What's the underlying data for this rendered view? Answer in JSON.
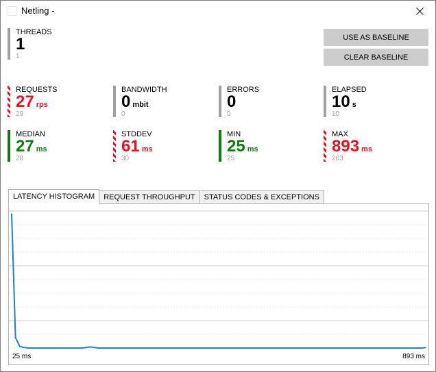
{
  "window": {
    "title": "Netling -"
  },
  "metrics": {
    "threads": {
      "label": "THREADS",
      "value": "1",
      "unit": "",
      "baseline": "1"
    },
    "requests": {
      "label": "REQUESTS",
      "value": "27",
      "unit": "rps",
      "baseline": "29"
    },
    "bandwidth": {
      "label": "BANDWIDTH",
      "value": "0",
      "unit": "mbit",
      "baseline": "0"
    },
    "errors": {
      "label": "ERRORS",
      "value": "0",
      "unit": "",
      "baseline": "0"
    },
    "elapsed": {
      "label": "ELAPSED",
      "value": "10",
      "unit": "s",
      "baseline": "10"
    },
    "median": {
      "label": "MEDIAN",
      "value": "27",
      "unit": "ms",
      "baseline": "28"
    },
    "stddev": {
      "label": "STDDEV",
      "value": "61",
      "unit": "ms",
      "baseline": "30"
    },
    "min": {
      "label": "MIN",
      "value": "25",
      "unit": "ms",
      "baseline": "25"
    },
    "max": {
      "label": "MAX",
      "value": "893",
      "unit": "ms",
      "baseline": "263"
    }
  },
  "buttons": {
    "use_baseline": "USE AS BASELINE",
    "clear_baseline": "CLEAR BASELINE"
  },
  "tabs": [
    {
      "label": "LATENCY HISTOGRAM",
      "active": true
    },
    {
      "label": "REQUEST THROUGHPUT",
      "active": false
    },
    {
      "label": "STATUS CODES & EXCEPTIONS",
      "active": false
    }
  ],
  "colors": {
    "good": "#107c10",
    "bad": "#e81123",
    "neutral": "#a0a0a0",
    "line": "#1e7fcb",
    "button": "#cccccc"
  },
  "chart_data": {
    "type": "line",
    "x_min_label": "25 ms",
    "x_max_label": "893 ms",
    "x": [
      25,
      33,
      42,
      51,
      60,
      68,
      77,
      86,
      94,
      103,
      112,
      120,
      129,
      138,
      146,
      155,
      164,
      173,
      181,
      190,
      199,
      207,
      216,
      225,
      233,
      242,
      251,
      259,
      268,
      277,
      286,
      294,
      303,
      312,
      320,
      329,
      338,
      346,
      355,
      364,
      372,
      381,
      390,
      399,
      407,
      416,
      425,
      433,
      442,
      451,
      459,
      468,
      477,
      485,
      494,
      503,
      512,
      520,
      529,
      538,
      546,
      555,
      564,
      572,
      581,
      590,
      598,
      607,
      616,
      625,
      633,
      642,
      651,
      659,
      668,
      677,
      685,
      694,
      703,
      711,
      720,
      729,
      738,
      746,
      755,
      764,
      772,
      781,
      790,
      798,
      807,
      816,
      824,
      833,
      842,
      851,
      859,
      868,
      877,
      885,
      893
    ],
    "values": [
      245,
      19,
      3,
      1,
      0,
      0,
      0,
      0,
      0,
      0,
      0,
      0,
      0,
      0,
      0,
      0,
      0,
      0,
      1,
      2,
      1,
      0,
      0,
      0,
      0,
      0,
      0,
      0,
      0,
      0,
      0,
      0,
      0,
      0,
      0,
      0,
      0,
      0,
      0,
      0,
      0,
      0,
      0,
      0,
      0,
      0,
      0,
      0,
      0,
      0,
      0,
      0,
      0,
      0,
      0,
      0,
      0,
      0,
      0,
      0,
      0,
      0,
      0,
      0,
      0,
      0,
      0,
      0,
      0,
      0,
      0,
      0,
      0,
      0,
      0,
      0,
      0,
      0,
      0,
      0,
      0,
      0,
      0,
      0,
      0,
      0,
      0,
      0,
      0,
      0,
      0,
      0,
      0,
      0,
      0,
      0,
      0,
      0,
      0,
      0,
      1
    ],
    "ylim": [
      0,
      250
    ],
    "grid": true
  }
}
